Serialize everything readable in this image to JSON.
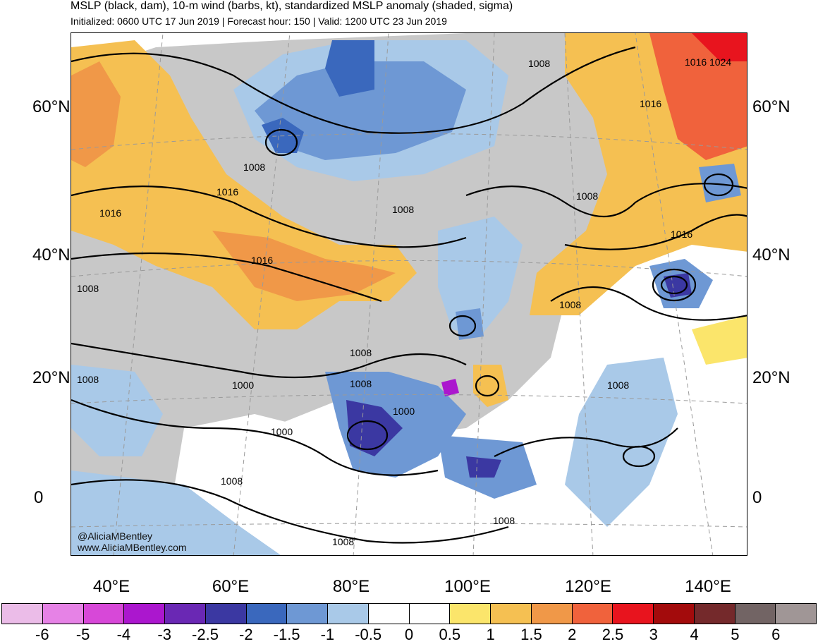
{
  "header": {
    "title": "MSLP (black, dam), 10-m wind (barbs, kt), standardized MSLP anomaly (shaded, sigma)",
    "subtitle": "Initialized: 0600 UTC 17 Jun 2019 | Forecast hour: 150 | Valid: 1200 UTC 23 Jun 2019"
  },
  "map": {
    "lat_labels": [
      "60°N",
      "40°N",
      "20°N",
      "0"
    ],
    "lon_labels": [
      "40°E",
      "60°E",
      "80°E",
      "100°E",
      "120°E",
      "140°E"
    ],
    "contour_labels": [
      "1008",
      "1016",
      "1024",
      "1016",
      "1008",
      "1016",
      "1016",
      "1016",
      "1008",
      "1008",
      "1016",
      "1008",
      "1008",
      "1008",
      "1000",
      "1008",
      "1000",
      "1000",
      "1008",
      "1008",
      "1008",
      "1008",
      "1008"
    ],
    "colors": {
      "land_gray": "#c8c8c8",
      "coast": "#555555",
      "contour": "#000000"
    }
  },
  "credits": {
    "handle": "@AliciaMBentley",
    "site": "www.AliciaMBentley.com"
  },
  "colorbar": {
    "colors": [
      "#ebbce8",
      "#e682e6",
      "#d748d8",
      "#ab17ce",
      "#6a28b4",
      "#3b38a2",
      "#3a68bd",
      "#6e98d4",
      "#a9c9e8",
      "#ffffff",
      "#ffffff",
      "#fbe56b",
      "#f5c052",
      "#f09848",
      "#f0623c",
      "#e8141e",
      "#a30b0c",
      "#74292b",
      "#726464",
      "#a09696"
    ],
    "labels": [
      "-6",
      "-5",
      "-4",
      "-3",
      "-2.5",
      "-2",
      "-1.5",
      "-1",
      "-0.5",
      "0",
      "0.5",
      "1",
      "1.5",
      "2",
      "2.5",
      "3",
      "4",
      "5",
      "6"
    ]
  }
}
